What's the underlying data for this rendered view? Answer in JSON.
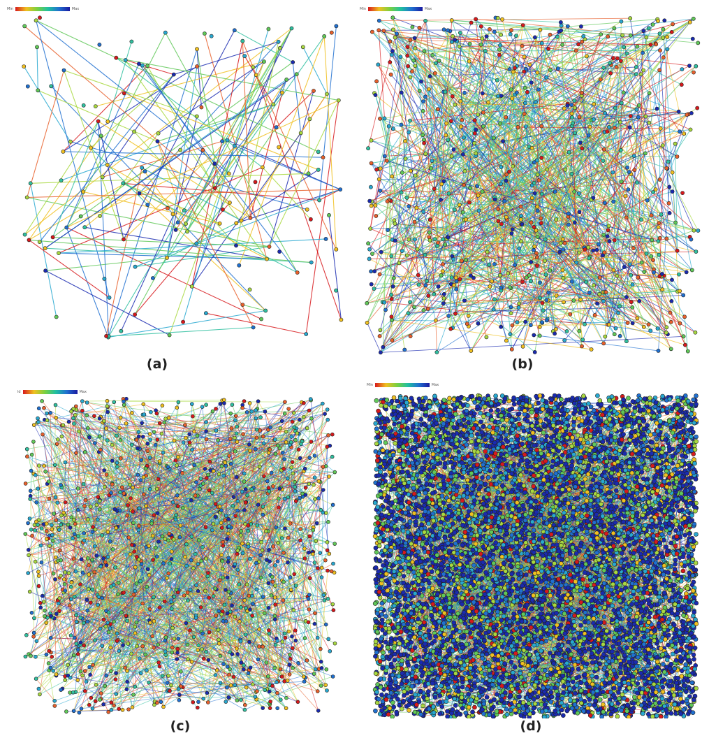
{
  "legend": {
    "a": {
      "min": "Min",
      "max": "Max"
    },
    "b": {
      "min": "Min",
      "max": "Max"
    },
    "c": {
      "min": "ld",
      "max": "Max"
    },
    "d": {
      "min": "Min",
      "max": "Max"
    }
  },
  "captions": {
    "a": "(a)",
    "b": "(b)",
    "c": "(c)",
    "d": "(d)"
  },
  "palette": [
    "#d7191c",
    "#e8602c",
    "#f0c020",
    "#a8d840",
    "#60c858",
    "#30c0a0",
    "#28a8d0",
    "#2070d0",
    "#1a2ab0"
  ],
  "panels": {
    "a": {
      "nodes": 150,
      "edges": 150
    },
    "b": {
      "nodes": 700,
      "edges": 900
    },
    "c": {
      "nodes": 1100,
      "edges": 1500
    },
    "d": {
      "nodes": 9000,
      "edges": 2500
    }
  }
}
